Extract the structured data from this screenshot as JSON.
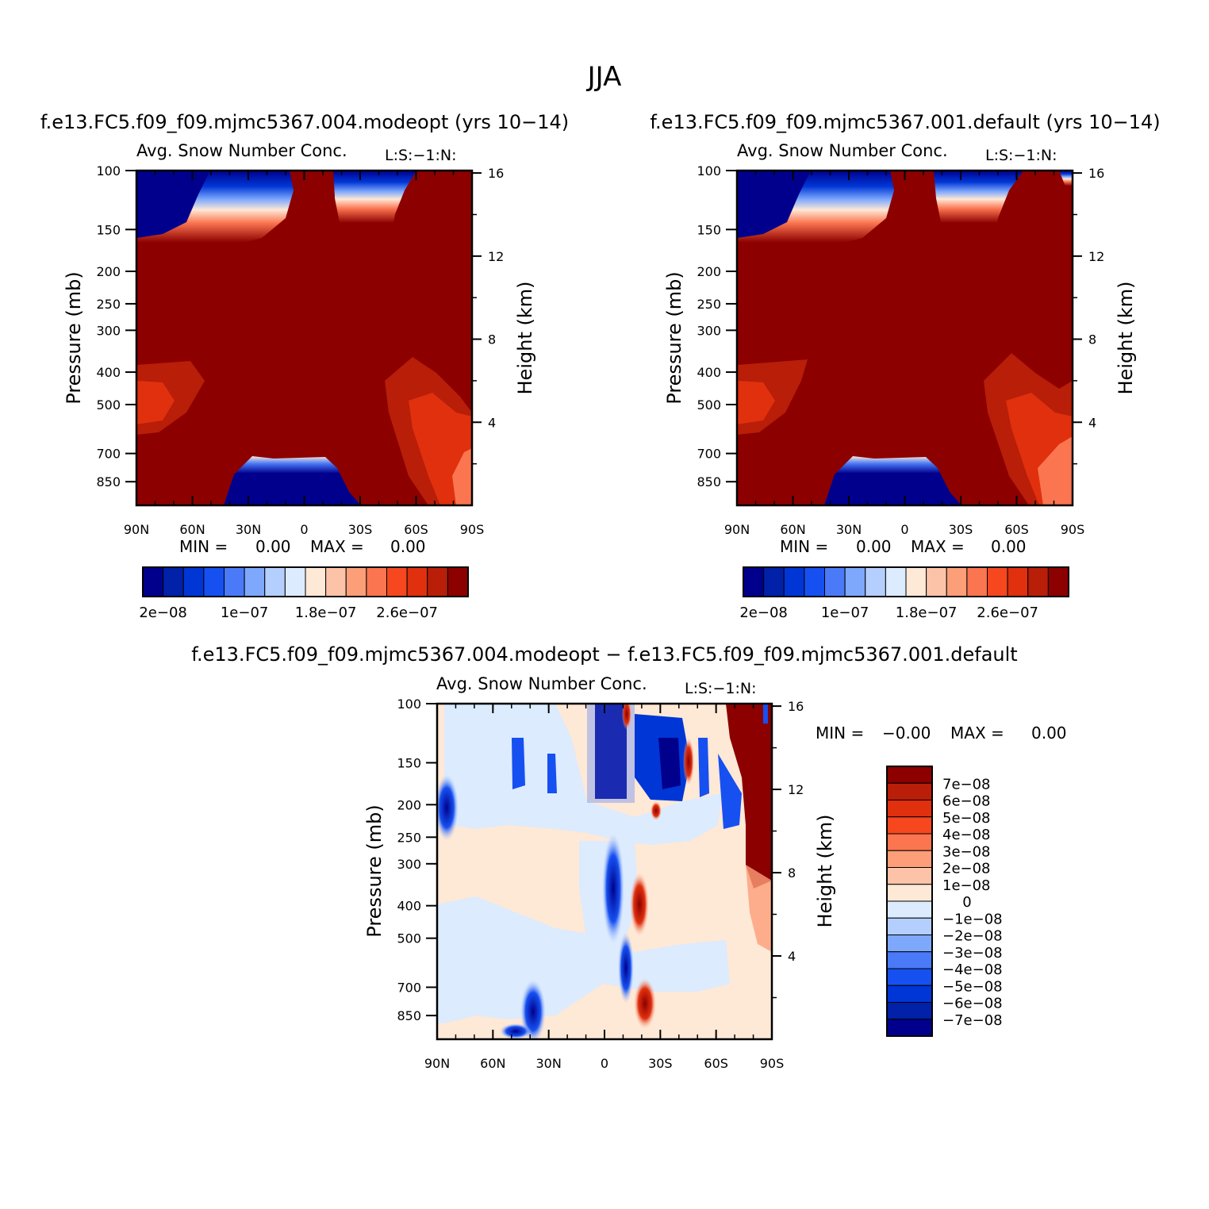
{
  "figure_title": "JJA",
  "colors": {
    "top_levels": [
      "#00008c",
      "#0021a8",
      "#0036d6",
      "#1650f0",
      "#4a7af8",
      "#7ea8fc",
      "#b4cefe",
      "#dcebfe",
      "#fee8d6",
      "#fcc3a8",
      "#fc9e78",
      "#fb7550",
      "#f6471e",
      "#e0300e",
      "#b81e08",
      "#8c0000"
    ],
    "diff_levels": [
      "#00008c",
      "#0021a8",
      "#0036d6",
      "#1650f0",
      "#4a7af8",
      "#7ea8fc",
      "#b4cefe",
      "#dcebfe",
      "#fee8d6",
      "#fcc3a8",
      "#fc9e78",
      "#fb7550",
      "#f6471e",
      "#e0300e",
      "#b81e08",
      "#8c0000"
    ]
  },
  "chart_data": [
    {
      "id": "panel-modeopt",
      "type": "heatmap",
      "case_title": "f.e13.FC5.f09_f09.mjmc5367.004.modeopt (yrs 10−14)",
      "subtitle_left": "Avg. Snow Number Conc.",
      "subtitle_right": "L:S:−1:N:",
      "x_ticklabels": [
        "90N",
        "60N",
        "30N",
        "0",
        "30S",
        "60S",
        "90S"
      ],
      "x_range": [
        90,
        -90
      ],
      "ylabel": "Pressure (mb)",
      "pressure_ticks": [
        "100",
        "150",
        "200",
        "250",
        "300",
        "400",
        "500",
        "700",
        "850"
      ],
      "pressure_range": [
        100,
        1000
      ],
      "ylabel_right": "Height (km)",
      "height_ticks": [
        "16",
        "12",
        "8",
        "4"
      ],
      "min_label": "MIN =",
      "min_value": "0.00",
      "max_label": "MAX =",
      "max_value": "0.00",
      "colorbar_labels": [
        "2e−08",
        "1e−07",
        "1.8e−07",
        "2.6e−07"
      ]
    },
    {
      "id": "panel-default",
      "type": "heatmap",
      "case_title": "f.e13.FC5.f09_f09.mjmc5367.001.default (yrs 10−14)",
      "subtitle_left": "Avg. Snow Number Conc.",
      "subtitle_right": "L:S:−1:N:",
      "x_ticklabels": [
        "90N",
        "60N",
        "30N",
        "0",
        "30S",
        "60S",
        "90S"
      ],
      "x_range": [
        90,
        -90
      ],
      "ylabel": "Pressure (mb)",
      "pressure_ticks": [
        "100",
        "150",
        "200",
        "250",
        "300",
        "400",
        "500",
        "700",
        "850"
      ],
      "pressure_range": [
        100,
        1000
      ],
      "ylabel_right": "Height (km)",
      "height_ticks": [
        "16",
        "12",
        "8",
        "4"
      ],
      "min_label": "MIN =",
      "min_value": "0.00",
      "max_label": "MAX =",
      "max_value": "0.00",
      "colorbar_labels": [
        "2e−08",
        "1e−07",
        "1.8e−07",
        "2.6e−07"
      ]
    },
    {
      "id": "panel-diff",
      "type": "heatmap",
      "case_title": "f.e13.FC5.f09_f09.mjmc5367.004.modeopt − f.e13.FC5.f09_f09.mjmc5367.001.default",
      "subtitle_left": "Avg. Snow Number Conc.",
      "subtitle_right": "L:S:−1:N:",
      "x_ticklabels": [
        "90N",
        "60N",
        "30N",
        "0",
        "30S",
        "60S",
        "90S"
      ],
      "x_range": [
        90,
        -90
      ],
      "ylabel": "Pressure (mb)",
      "pressure_ticks": [
        "100",
        "150",
        "200",
        "250",
        "300",
        "400",
        "500",
        "700",
        "850"
      ],
      "pressure_range": [
        100,
        1000
      ],
      "ylabel_right": "Height (km)",
      "height_ticks": [
        "16",
        "12",
        "8",
        "4"
      ],
      "min_label": "MIN =",
      "min_value": "−0.00",
      "max_label": "MAX =",
      "max_value": "0.00",
      "colorbar_labels": [
        "7e−08",
        "6e−08",
        "5e−08",
        "4e−08",
        "3e−08",
        "2e−08",
        "1e−08",
        "0",
        "−1e−08",
        "−2e−08",
        "−3e−08",
        "−4e−08",
        "−5e−08",
        "−6e−08",
        "−7e−08"
      ]
    }
  ]
}
